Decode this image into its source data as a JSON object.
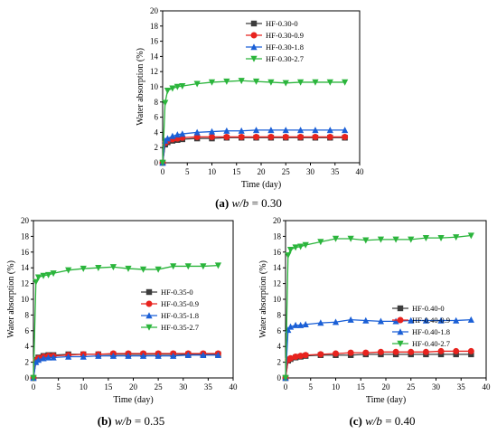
{
  "chart_data": [
    {
      "type": "line",
      "caption": "(a) w/b = 0.30",
      "caption_parts": {
        "letter": "(a)",
        "wb": "w/b",
        "value": "= 0.30"
      },
      "xlabel": "Time (day)",
      "ylabel": "Water absorption (%)",
      "xlim": [
        0,
        40
      ],
      "ylim": [
        0,
        20
      ],
      "xticks": [
        0,
        5,
        10,
        15,
        20,
        25,
        30,
        35,
        40
      ],
      "yticks": [
        0,
        2,
        4,
        6,
        8,
        10,
        12,
        14,
        16,
        18,
        20
      ],
      "legend_position": "top-right",
      "x": [
        0,
        0.5,
        1,
        2,
        3,
        4,
        7,
        10,
        13,
        16,
        19,
        22,
        25,
        28,
        31,
        34,
        37
      ],
      "series": [
        {
          "name": "HF-0.30-0",
          "color": "#3c3c3c",
          "marker": "square",
          "values": [
            0,
            2.4,
            2.7,
            2.9,
            3.0,
            3.1,
            3.2,
            3.2,
            3.3,
            3.3,
            3.3,
            3.3,
            3.3,
            3.3,
            3.3,
            3.3,
            3.3
          ]
        },
        {
          "name": "HF-0.30-0.9",
          "color": "#e8231e",
          "marker": "circle",
          "values": [
            0,
            2.6,
            2.9,
            3.1,
            3.2,
            3.3,
            3.4,
            3.4,
            3.4,
            3.4,
            3.4,
            3.4,
            3.4,
            3.4,
            3.4,
            3.4,
            3.4
          ]
        },
        {
          "name": "HF-0.30-1.8",
          "color": "#1a5fd6",
          "marker": "triangle-up",
          "values": [
            0,
            2.9,
            3.2,
            3.5,
            3.7,
            3.8,
            4.0,
            4.1,
            4.2,
            4.2,
            4.3,
            4.3,
            4.3,
            4.3,
            4.3,
            4.3,
            4.3
          ]
        },
        {
          "name": "HF-0.30-2.7",
          "color": "#2bb53c",
          "marker": "triangle-down",
          "values": [
            0,
            7.9,
            9.5,
            9.8,
            10.0,
            10.1,
            10.4,
            10.6,
            10.7,
            10.8,
            10.7,
            10.6,
            10.5,
            10.6,
            10.6,
            10.6,
            10.6
          ]
        }
      ]
    },
    {
      "type": "line",
      "caption": "(b) w/b = 0.35",
      "caption_parts": {
        "letter": "(b)",
        "wb": "w/b",
        "value": "= 0.35"
      },
      "xlabel": "Time (day)",
      "ylabel": "Water absorption (%)",
      "xlim": [
        0,
        40
      ],
      "ylim": [
        0,
        20
      ],
      "xticks": [
        0,
        5,
        10,
        15,
        20,
        25,
        30,
        35,
        40
      ],
      "yticks": [
        0,
        2,
        4,
        6,
        8,
        10,
        12,
        14,
        16,
        18,
        20
      ],
      "legend_position": "middle-right",
      "x": [
        0,
        0.5,
        1,
        2,
        3,
        4,
        7,
        10,
        13,
        16,
        19,
        22,
        25,
        28,
        31,
        34,
        37
      ],
      "series": [
        {
          "name": "HF-0.35-0",
          "color": "#3c3c3c",
          "marker": "square",
          "values": [
            0,
            2.3,
            2.6,
            2.8,
            2.9,
            2.9,
            3.0,
            3.0,
            3.0,
            3.0,
            3.0,
            3.0,
            3.0,
            3.0,
            3.0,
            3.0,
            3.0
          ]
        },
        {
          "name": "HF-0.35-0.9",
          "color": "#e8231e",
          "marker": "circle",
          "values": [
            0,
            2.2,
            2.5,
            2.7,
            2.8,
            2.8,
            2.9,
            3.0,
            3.0,
            3.1,
            3.1,
            3.1,
            3.1,
            3.1,
            3.1,
            3.1,
            3.1
          ]
        },
        {
          "name": "HF-0.35-1.8",
          "color": "#1a5fd6",
          "marker": "triangle-up",
          "values": [
            0,
            2.0,
            2.3,
            2.5,
            2.6,
            2.6,
            2.7,
            2.7,
            2.8,
            2.8,
            2.8,
            2.8,
            2.8,
            2.8,
            2.9,
            2.9,
            2.9
          ]
        },
        {
          "name": "HF-0.35-2.7",
          "color": "#2bb53c",
          "marker": "triangle-down",
          "values": [
            0,
            12.2,
            12.8,
            13.0,
            13.1,
            13.3,
            13.7,
            13.9,
            14.0,
            14.1,
            13.9,
            13.8,
            13.8,
            14.2,
            14.2,
            14.2,
            14.3
          ]
        }
      ]
    },
    {
      "type": "line",
      "caption": "(c) w/b = 0.40",
      "caption_parts": {
        "letter": "(c)",
        "wb": "w/b",
        "value": "= 0.40"
      },
      "xlabel": "Time (day)",
      "ylabel": "Water absorption (%)",
      "xlim": [
        0,
        40
      ],
      "ylim": [
        0,
        20
      ],
      "xticks": [
        0,
        5,
        10,
        15,
        20,
        25,
        30,
        35,
        40
      ],
      "yticks": [
        0,
        2,
        4,
        6,
        8,
        10,
        12,
        14,
        16,
        18,
        20
      ],
      "legend_position": "middle-right",
      "x": [
        0,
        0.5,
        1,
        2,
        3,
        4,
        7,
        10,
        13,
        16,
        19,
        22,
        25,
        28,
        31,
        34,
        37
      ],
      "series": [
        {
          "name": "HF-0.40-0",
          "color": "#3c3c3c",
          "marker": "square",
          "values": [
            0,
            2.2,
            2.4,
            2.6,
            2.7,
            2.8,
            2.9,
            2.9,
            2.9,
            3.0,
            3.0,
            3.0,
            3.0,
            3.0,
            3.0,
            3.0,
            3.0
          ]
        },
        {
          "name": "HF-0.40-0.9",
          "color": "#e8231e",
          "marker": "circle",
          "values": [
            0,
            2.3,
            2.5,
            2.7,
            2.8,
            2.9,
            3.0,
            3.1,
            3.2,
            3.2,
            3.3,
            3.3,
            3.3,
            3.3,
            3.4,
            3.4,
            3.4
          ]
        },
        {
          "name": "HF-0.40-1.8",
          "color": "#1a5fd6",
          "marker": "triangle-up",
          "values": [
            0,
            6.1,
            6.5,
            6.7,
            6.7,
            6.8,
            7.0,
            7.1,
            7.4,
            7.3,
            7.2,
            7.2,
            7.3,
            7.3,
            7.3,
            7.3,
            7.4
          ]
        },
        {
          "name": "HF-0.40-2.7",
          "color": "#2bb53c",
          "marker": "triangle-down",
          "values": [
            0,
            15.6,
            16.3,
            16.6,
            16.7,
            16.9,
            17.3,
            17.7,
            17.7,
            17.5,
            17.6,
            17.6,
            17.6,
            17.8,
            17.8,
            17.9,
            18.1
          ]
        }
      ]
    }
  ]
}
